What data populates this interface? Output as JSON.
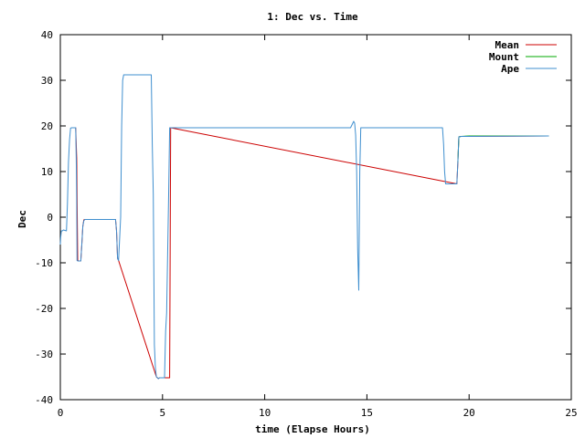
{
  "chart_data": {
    "type": "line",
    "title": "1: Dec vs. Time",
    "xlabel": "time (Elapse Hours)",
    "ylabel": "Dec",
    "xlim": [
      0,
      25
    ],
    "ylim": [
      -40,
      40
    ],
    "xticks": [
      0,
      5,
      10,
      15,
      20,
      25
    ],
    "yticks": [
      -40,
      -30,
      -20,
      -10,
      0,
      10,
      20,
      30,
      40
    ],
    "grid": false,
    "legend_position": "top-right",
    "series": [
      {
        "name": "Mean",
        "color": "#cc0000",
        "x": [
          0.6,
          0.75,
          0.8,
          0.85,
          0.9,
          1.0,
          1.05,
          1.1,
          1.15,
          1.2,
          2.7,
          2.75,
          2.8,
          2.85,
          4.7,
          4.8,
          4.85,
          5.35,
          5.4,
          19.4,
          19.45,
          19.5,
          19.6,
          23.9
        ],
        "y": [
          19.6,
          19.6,
          13,
          -9.5,
          -9.6,
          -9.6,
          -6,
          -2,
          -0.6,
          -0.5,
          -0.5,
          -3,
          -9,
          -9.5,
          -35,
          -35.4,
          -35.2,
          -35.2,
          19.6,
          7.3,
          12,
          17.6,
          17.7,
          17.8
        ]
      },
      {
        "name": "Mount",
        "color": "#00aa00",
        "x": [
          19.45,
          19.5,
          19.6,
          20.0,
          23.9
        ],
        "y": [
          12,
          17.6,
          17.7,
          17.8,
          17.8
        ]
      },
      {
        "name": "Ape",
        "color": "#3f8fcf",
        "x": [
          0.0,
          0.02,
          0.05,
          0.1,
          0.15,
          0.3,
          0.35,
          0.4,
          0.45,
          0.5,
          0.55,
          0.6,
          0.75,
          0.78,
          0.8,
          0.82,
          0.85,
          0.9,
          1.0,
          1.05,
          1.1,
          1.15,
          1.2,
          2.7,
          2.75,
          2.8,
          2.85,
          2.9,
          2.95,
          3.0,
          3.05,
          3.1,
          3.2,
          4.45,
          4.5,
          4.55,
          4.6,
          4.65,
          4.7,
          4.8,
          4.85,
          5.1,
          5.15,
          5.2,
          5.3,
          5.35,
          5.4,
          14.2,
          14.3,
          14.35,
          14.4,
          14.45,
          14.5,
          14.55,
          14.6,
          14.65,
          14.7,
          14.75,
          14.8,
          18.7,
          18.75,
          18.8,
          18.85,
          18.9,
          19.35,
          19.4,
          19.45,
          19.5,
          19.6,
          23.9
        ],
        "y": [
          -6,
          -4.5,
          -3,
          -3,
          -2.8,
          -3,
          3,
          12,
          17,
          19.5,
          19.6,
          19.6,
          19.6,
          13,
          4,
          -9.5,
          -9.6,
          -9.6,
          -9.6,
          -6,
          -2,
          -0.8,
          -0.5,
          -0.5,
          -3,
          -9,
          -9.5,
          -5,
          0,
          20,
          30,
          31.2,
          31.2,
          31.2,
          16,
          5,
          -28,
          -33,
          -35,
          -35.4,
          -35.2,
          -35.2,
          -25,
          -21,
          5,
          19.6,
          19.6,
          19.6,
          20.5,
          21,
          20.6,
          18,
          10,
          -7,
          -16,
          10,
          19.6,
          19.6,
          19.6,
          19.6,
          16,
          10,
          7.3,
          7.3,
          7.3,
          7.3,
          12,
          17.6,
          17.7,
          17.8
        ]
      }
    ]
  }
}
